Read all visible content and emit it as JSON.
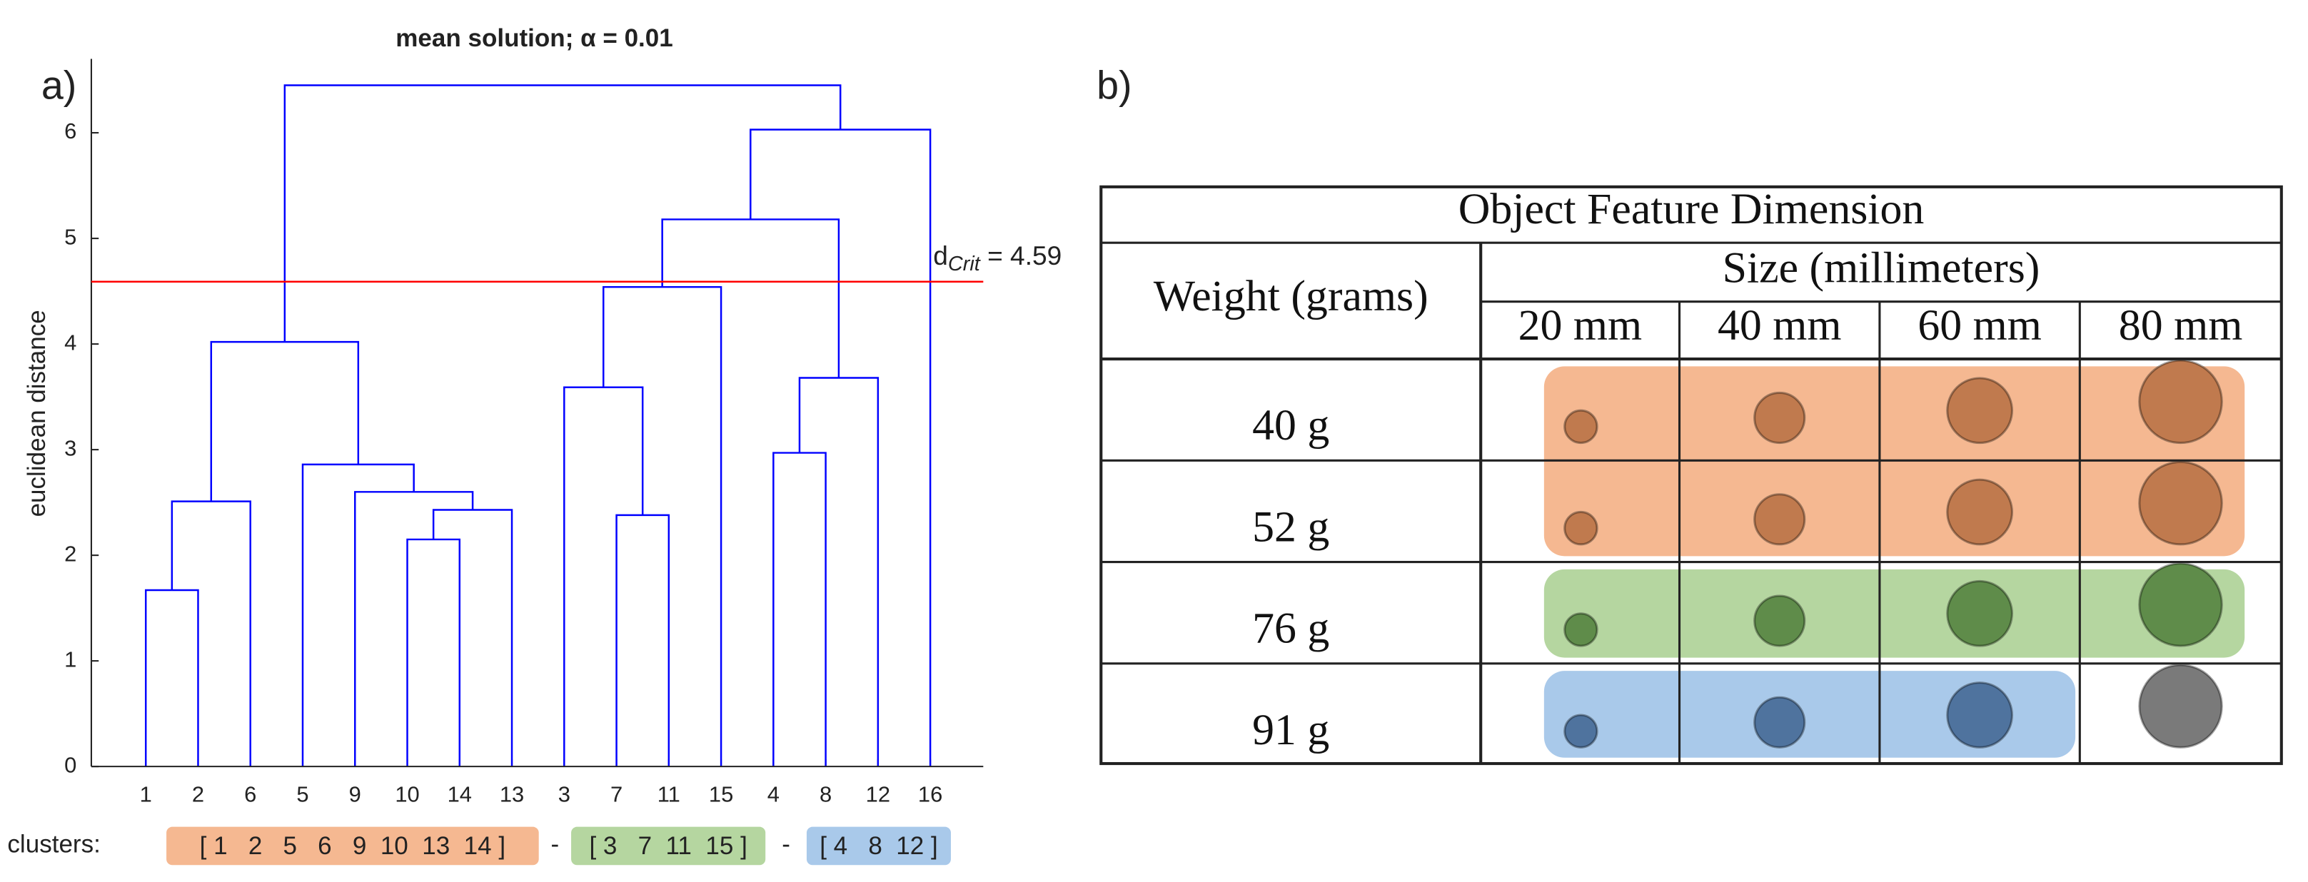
{
  "panel_labels": [
    "a)",
    "b)"
  ],
  "chart_data": {
    "type": "dendrogram",
    "title": "mean solution; α = 0.01",
    "ylabel": "euclidean distance",
    "leaves": [
      "1",
      "2",
      "6",
      "5",
      "9",
      "10",
      "14",
      "13",
      "3",
      "7",
      "11",
      "15",
      "4",
      "8",
      "12",
      "16"
    ],
    "merges": [
      [
        0,
        1
      ],
      [
        5,
        6
      ],
      [
        9,
        10
      ],
      [
        17,
        7
      ],
      [
        16,
        2
      ],
      [
        4,
        19
      ],
      [
        3,
        21
      ],
      [
        12,
        13
      ],
      [
        8,
        18
      ],
      [
        23,
        14
      ],
      [
        20,
        22
      ],
      [
        24,
        11
      ],
      [
        27,
        25
      ],
      [
        28,
        15
      ],
      [
        26,
        29
      ]
    ],
    "heights": [
      1.67,
      2.15,
      2.38,
      2.43,
      2.51,
      2.6,
      2.86,
      2.97,
      3.59,
      3.68,
      4.02,
      4.54,
      5.18,
      6.03,
      6.45
    ],
    "line_color": "#0000ff",
    "ylim": [
      0,
      6.7
    ],
    "yticks": [
      0,
      1,
      2,
      3,
      4,
      5,
      6
    ],
    "threshold": 4.59,
    "threshold_color": "#ff0000",
    "threshold_label": "d",
    "threshold_label_sub": "Crit",
    "threshold_label_suffix": " = 4.59",
    "clusters_label": "clusters:",
    "separator": "-",
    "clusters": [
      {
        "label": "[ 1   2   5   6   9  10  13  14 ]",
        "color": "#f5b891",
        "text_color": "#8a5a3c"
      },
      {
        "label": "[ 3   7  11  15 ]",
        "color": "#b5d6a0",
        "text_color": "#3f6a2c"
      },
      {
        "label": "[ 4   8  12 ]",
        "color": "#a9c9ea",
        "text_color": "#3d6190"
      }
    ]
  },
  "table": {
    "title": "Object Feature Dimension",
    "row_header": "Weight (grams)",
    "column_group": "Size (millimeters)",
    "columns": [
      "20 mm",
      "40 mm",
      "60 mm",
      "80 mm"
    ],
    "rows": [
      "40 g",
      "52 g",
      "76 g",
      "91 g"
    ],
    "highlights": [
      {
        "rows": [
          0,
          1
        ],
        "cols": [
          0,
          3
        ],
        "color": "#f5b891",
        "mark_color": "#c07a4e"
      },
      {
        "rows": [
          2,
          2
        ],
        "cols": [
          0,
          3
        ],
        "color": "#b5d6a0",
        "mark_color": "#5f8c4a"
      },
      {
        "rows": [
          3,
          3
        ],
        "cols": [
          0,
          2
        ],
        "color": "#a9c9ea",
        "mark_color": "#4f739e"
      }
    ],
    "unassigned_color": "#7a7a7a"
  }
}
